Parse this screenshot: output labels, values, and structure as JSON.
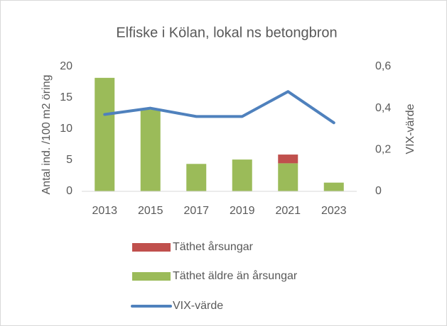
{
  "chart_data": {
    "type": "bar",
    "title": "Elfiske i Kölan, lokal ns betongbron",
    "categories": [
      "2013",
      "2015",
      "2017",
      "2019",
      "2021",
      "2023"
    ],
    "y_label": "Antal ind. /100 m2 öring",
    "y2_label": "VIX-värde",
    "series": [
      {
        "name": "Täthet årsungar",
        "type": "bar",
        "color": "#c0504d",
        "values": [
          0,
          0,
          0,
          0,
          1.4,
          0
        ]
      },
      {
        "name": "Täthet äldre än årsungar",
        "type": "bar",
        "color": "#9bbb59",
        "values": [
          18.2,
          13.1,
          4.4,
          5.1,
          4.5,
          1.4
        ]
      },
      {
        "name": "VIX-värde",
        "type": "line",
        "axis": "y2",
        "color": "#4f81bd",
        "values": [
          0.37,
          0.4,
          0.36,
          0.36,
          0.48,
          0.33
        ]
      }
    ],
    "stacked": true,
    "ylim": [
      0,
      20
    ],
    "yticks": [
      0,
      5,
      10,
      15,
      20
    ],
    "y2lim": [
      0,
      0.6
    ],
    "y2ticks": [
      0,
      {
        "value": 0.2,
        "label": "0,2"
      },
      {
        "value": 0.4,
        "label": "0,4"
      },
      {
        "value": 0.6,
        "label": "0,6"
      }
    ],
    "grid": false,
    "legend": "bottom"
  }
}
